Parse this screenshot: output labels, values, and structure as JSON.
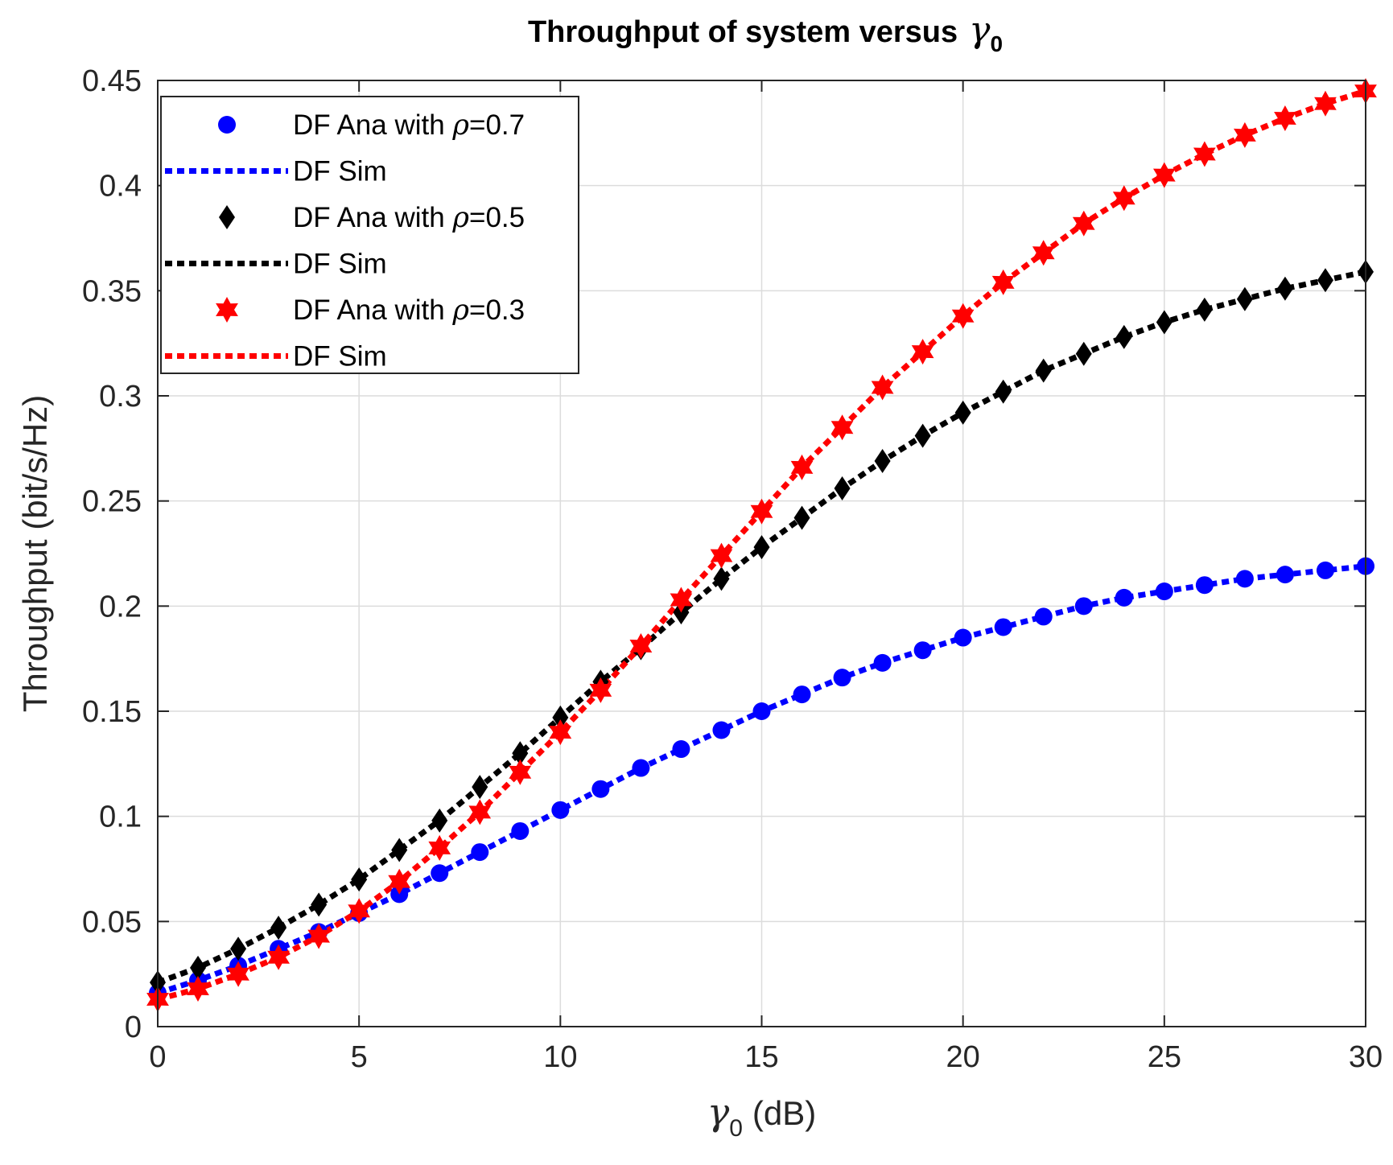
{
  "chart_data": {
    "type": "line",
    "title": "Throughput of system versus",
    "title_symbol": "γ",
    "title_symbol_sub": "0",
    "xlabel_symbol": "γ",
    "xlabel_symbol_sub": "0",
    "xlabel_text": "(dB)",
    "ylabel": "Throughput (bit/s/Hz)",
    "xlim": [
      0,
      30
    ],
    "ylim": [
      0,
      0.45
    ],
    "xticks": [
      "0",
      "5",
      "10",
      "15",
      "20",
      "25",
      "30"
    ],
    "yticks": [
      "0",
      "0.05",
      "0.1",
      "0.15",
      "0.2",
      "0.25",
      "0.3",
      "0.35",
      "0.4",
      "0.45"
    ],
    "grid": true,
    "legend_position": "top-left",
    "legend": [
      {
        "prefix": "DF Ana with ",
        "symbol": "ρ",
        "suffix": "=0.7",
        "kind": "marker",
        "marker": "circle",
        "color": "#0000FF"
      },
      {
        "prefix": "DF Sim",
        "symbol": "",
        "suffix": "",
        "kind": "line",
        "color": "#0000FF"
      },
      {
        "prefix": "DF Ana with ",
        "symbol": "ρ",
        "suffix": "=0.5",
        "kind": "marker",
        "marker": "diamond",
        "color": "#000000"
      },
      {
        "prefix": "DF Sim",
        "symbol": "",
        "suffix": "",
        "kind": "line",
        "color": "#000000"
      },
      {
        "prefix": "DF Ana with ",
        "symbol": "ρ",
        "suffix": "=0.3",
        "kind": "marker",
        "marker": "hexagram",
        "color": "#FF0000"
      },
      {
        "prefix": "DF Sim",
        "symbol": "",
        "suffix": "",
        "kind": "line",
        "color": "#FF0000"
      }
    ],
    "x": [
      0,
      1,
      2,
      3,
      4,
      5,
      6,
      7,
      8,
      9,
      10,
      11,
      12,
      13,
      14,
      15,
      16,
      17,
      18,
      19,
      20,
      21,
      22,
      23,
      24,
      25,
      26,
      27,
      28,
      29,
      30
    ],
    "series": [
      {
        "name": "rho=0.7",
        "color": "#0000FF",
        "marker": "circle",
        "values": [
          0.016,
          0.022,
          0.029,
          0.037,
          0.045,
          0.054,
          0.063,
          0.073,
          0.083,
          0.093,
          0.103,
          0.113,
          0.123,
          0.132,
          0.141,
          0.15,
          0.158,
          0.166,
          0.173,
          0.179,
          0.185,
          0.19,
          0.195,
          0.2,
          0.204,
          0.207,
          0.21,
          0.213,
          0.215,
          0.217,
          0.219
        ]
      },
      {
        "name": "rho=0.5",
        "color": "#000000",
        "marker": "diamond",
        "values": [
          0.021,
          0.028,
          0.037,
          0.047,
          0.058,
          0.07,
          0.084,
          0.098,
          0.114,
          0.13,
          0.147,
          0.164,
          0.18,
          0.197,
          0.213,
          0.228,
          0.242,
          0.256,
          0.269,
          0.281,
          0.292,
          0.302,
          0.312,
          0.32,
          0.328,
          0.335,
          0.341,
          0.346,
          0.351,
          0.355,
          0.359
        ]
      },
      {
        "name": "rho=0.3",
        "color": "#FF0000",
        "marker": "hexagram",
        "values": [
          0.013,
          0.018,
          0.025,
          0.033,
          0.043,
          0.055,
          0.069,
          0.085,
          0.102,
          0.121,
          0.14,
          0.16,
          0.181,
          0.203,
          0.224,
          0.245,
          0.266,
          0.285,
          0.304,
          0.321,
          0.338,
          0.354,
          0.368,
          0.382,
          0.394,
          0.405,
          0.415,
          0.424,
          0.432,
          0.439,
          0.445
        ]
      }
    ]
  }
}
